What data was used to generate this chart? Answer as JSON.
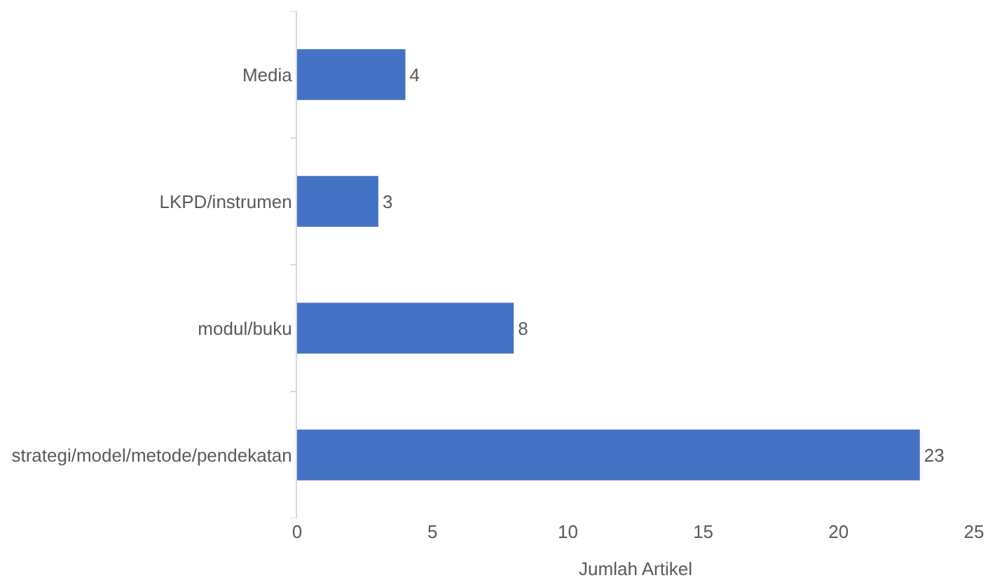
{
  "chart_data": {
    "type": "bar",
    "orientation": "horizontal",
    "categories": [
      "Media",
      "LKPD/instrumen",
      "modul/buku",
      "strategi/model/metode/pendekatan"
    ],
    "values": [
      4,
      3,
      8,
      23
    ],
    "color": "#4472c4",
    "xlim": [
      0,
      25
    ],
    "xticks": [
      0,
      5,
      10,
      15,
      20,
      25
    ],
    "xlabel": "Jumlah Artikel",
    "data_labels": true
  }
}
